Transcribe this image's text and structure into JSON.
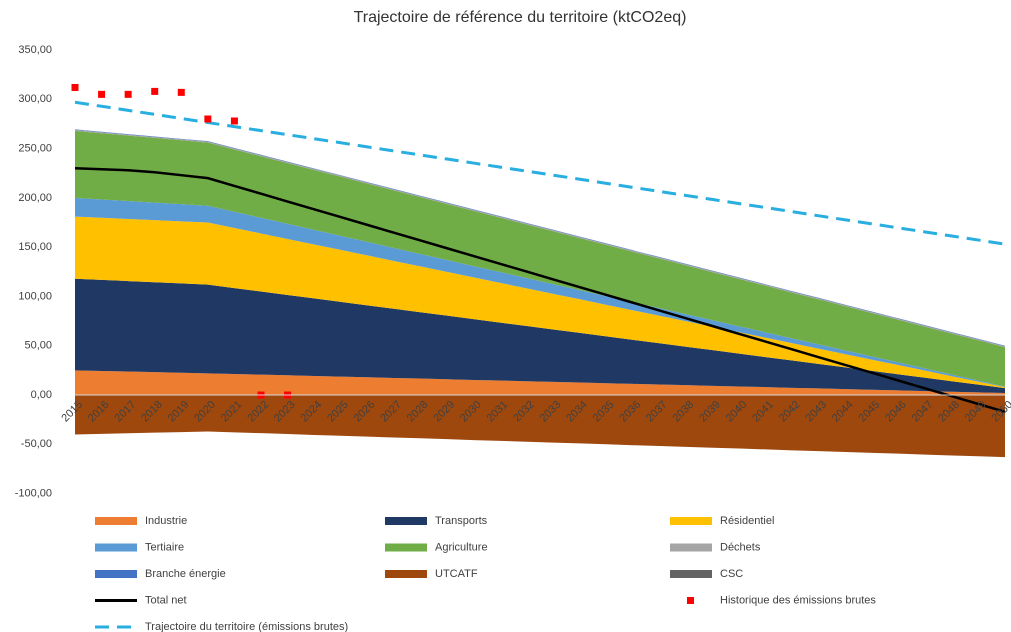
{
  "chart_data": {
    "type": "area",
    "title": "Trajectoire de référence du territoire (ktCO2eq)",
    "categories": [
      "2015",
      "2016",
      "2017",
      "2018",
      "2019",
      "2020",
      "2021",
      "2022",
      "2023",
      "2024",
      "2025",
      "2026",
      "2027",
      "2028",
      "2029",
      "2030",
      "2031",
      "2032",
      "2033",
      "2034",
      "2035",
      "2036",
      "2037",
      "2038",
      "2039",
      "2040",
      "2041",
      "2042",
      "2043",
      "2044",
      "2045",
      "2046",
      "2047",
      "2048",
      "2049",
      "2050"
    ],
    "ylim": [
      -100,
      350
    ],
    "yticks": [
      {
        "value": -100,
        "label": "-100,00"
      },
      {
        "value": -50,
        "label": "-50,00"
      },
      {
        "value": 0,
        "label": "0,00"
      },
      {
        "value": 50,
        "label": "50,00"
      },
      {
        "value": 100,
        "label": "100,00"
      },
      {
        "value": 150,
        "label": "150,00"
      },
      {
        "value": 200,
        "label": "200,00"
      },
      {
        "value": 250,
        "label": "250,00"
      },
      {
        "value": 300,
        "label": "300,00"
      },
      {
        "value": 350,
        "label": "350,00"
      }
    ],
    "stacked": true,
    "series": [
      {
        "name": "Industrie",
        "type": "area",
        "color": "#ed7d31",
        "values": [
          25,
          24.4,
          23.8,
          23.2,
          22.6,
          22,
          21.3,
          20.7,
          20,
          19.3,
          18.7,
          18,
          17.3,
          16.7,
          16,
          15.3,
          14.7,
          14,
          13.3,
          12.7,
          12,
          11.3,
          10.7,
          10,
          9.3,
          8.7,
          8,
          7.3,
          6.7,
          6,
          5.3,
          4.7,
          4,
          3.3,
          2.7,
          2
        ]
      },
      {
        "name": "Transports",
        "type": "area",
        "color": "#203864",
        "values": [
          93,
          92.4,
          91.8,
          91.2,
          90.6,
          90,
          87.2,
          84.3,
          81.5,
          78.7,
          75.8,
          73,
          70.2,
          67.3,
          64.5,
          61.7,
          58.8,
          56,
          53.2,
          50.3,
          47.5,
          44.7,
          41.8,
          39,
          36.2,
          33.3,
          30.5,
          27.7,
          24.8,
          22,
          19.2,
          16.3,
          13.5,
          10.7,
          7.8,
          5
        ]
      },
      {
        "name": "Résidentiel",
        "type": "area",
        "color": "#ffc000",
        "values": [
          63,
          63,
          63,
          63,
          63,
          63,
          60.9,
          58.9,
          56.8,
          54.7,
          52.7,
          50.6,
          48.5,
          46.5,
          44.4,
          42.3,
          40.3,
          38.2,
          36.1,
          34.1,
          32,
          29.9,
          27.9,
          25.8,
          23.7,
          21.7,
          19.6,
          17.5,
          15.5,
          13.4,
          11.3,
          9.3,
          7.2,
          5.1,
          3.1,
          1
        ]
      },
      {
        "name": "Tertiaire",
        "type": "area",
        "color": "#5b9bd5",
        "values": [
          19,
          18.6,
          18.2,
          17.8,
          17.4,
          17,
          16.5,
          15.9,
          15.4,
          14.8,
          14.3,
          13.7,
          13.2,
          12.6,
          12.1,
          11.5,
          11,
          10.4,
          9.9,
          9.3,
          8.8,
          8.2,
          7.7,
          7.1,
          6.6,
          6,
          5.5,
          4.9,
          4.4,
          3.8,
          3.3,
          2.7,
          2.2,
          1.6,
          1.1,
          0.5
        ]
      },
      {
        "name": "Agriculture",
        "type": "area",
        "color": "#70ad47",
        "values": [
          68,
          67.2,
          66.4,
          65.6,
          64.8,
          64,
          63.2,
          62.4,
          61.6,
          60.8,
          60,
          59.2,
          58.4,
          57.6,
          56.8,
          56,
          55.2,
          54.4,
          53.6,
          52.8,
          52,
          51.2,
          50.4,
          49.6,
          48.8,
          48,
          47.2,
          46.4,
          45.6,
          44.8,
          44,
          43.2,
          42.4,
          41.6,
          40.8,
          40
        ]
      },
      {
        "name": "Déchets",
        "type": "area",
        "color": "#a5a5a5",
        "values": [
          1,
          1,
          1,
          1,
          1,
          1,
          1,
          1,
          1,
          1,
          1,
          1,
          1,
          1,
          1,
          1,
          1,
          1,
          1,
          1,
          1,
          1,
          1,
          1,
          1,
          1,
          1,
          1,
          1,
          1,
          1,
          1,
          1,
          1,
          1,
          1
        ]
      },
      {
        "name": "Branche énergie",
        "type": "area",
        "color": "#4472c4",
        "values": [
          0.5,
          0.5,
          0.5,
          0.5,
          0.5,
          0.5,
          0.5,
          0.5,
          0.5,
          0.5,
          0.5,
          0.5,
          0.5,
          0.5,
          0.5,
          0.5,
          0.5,
          0.5,
          0.5,
          0.5,
          0.5,
          0.5,
          0.5,
          0.5,
          0.5,
          0.5,
          0.5,
          0.5,
          0.5,
          0.5,
          0.5,
          0.5,
          0.5,
          0.5,
          0.5,
          0.5
        ]
      },
      {
        "name": "UTCATF",
        "type": "area",
        "color": "#9e480e",
        "values": [
          -40,
          -39.4,
          -38.8,
          -38.2,
          -37.6,
          -37,
          -37.9,
          -38.7,
          -39.6,
          -40.5,
          -41.3,
          -42.2,
          -43.1,
          -43.9,
          -44.8,
          -45.7,
          -46.5,
          -47.4,
          -48.3,
          -49.1,
          -50,
          -50.9,
          -51.7,
          -52.6,
          -53.5,
          -54.3,
          -55.2,
          -56.1,
          -56.9,
          -57.8,
          -58.7,
          -59.5,
          -60.4,
          -61.3,
          -62.1,
          -63
        ]
      },
      {
        "name": "CSC",
        "type": "area",
        "color": "#636363",
        "values": [
          0,
          0,
          0,
          0,
          0,
          0,
          0,
          0,
          0,
          0,
          0,
          0,
          0,
          0,
          0,
          0,
          0,
          0,
          0,
          0,
          0,
          0,
          0,
          0,
          0,
          0,
          0,
          0,
          0,
          0,
          0,
          0,
          0,
          0,
          0,
          0
        ]
      },
      {
        "name": "Total net",
        "type": "line",
        "color": "#000000",
        "values": [
          230,
          229,
          228,
          226,
          223,
          220,
          212.1,
          204.2,
          196.3,
          188.4,
          180.5,
          172.6,
          164.7,
          156.8,
          148.9,
          141,
          133.1,
          125.2,
          117.3,
          109.4,
          101.5,
          93.6,
          85.7,
          77.8,
          69.9,
          62,
          54.1,
          46.2,
          38.3,
          30.4,
          22.5,
          14.6,
          6.7,
          -1.2,
          -9.1,
          -17
        ]
      },
      {
        "name": "Historique des émissions brutes",
        "type": "scatter",
        "color": "#ff0000",
        "values": [
          312,
          305,
          305,
          308,
          307,
          280,
          278,
          0,
          0,
          null,
          null,
          null,
          null,
          null,
          null,
          null,
          null,
          null,
          null,
          null,
          null,
          null,
          null,
          null,
          null,
          null,
          null,
          null,
          null,
          null,
          null,
          null,
          null,
          null,
          null,
          null
        ]
      },
      {
        "name": "Trajectoire du territoire (émissions brutes)",
        "type": "line",
        "dashed": true,
        "color": "#29aee0",
        "values": [
          297,
          292.9,
          288.8,
          284.7,
          280.5,
          276.4,
          272.3,
          268.2,
          264.1,
          260,
          255.9,
          251.7,
          247.6,
          243.5,
          239.4,
          235.3,
          231.2,
          227.1,
          223,
          218.9,
          214.7,
          210.6,
          206.5,
          202.4,
          198.3,
          194.2,
          190.1,
          186,
          181.8,
          177.7,
          173.6,
          169.5,
          165.4,
          161.3,
          157.2,
          153
        ]
      }
    ]
  }
}
